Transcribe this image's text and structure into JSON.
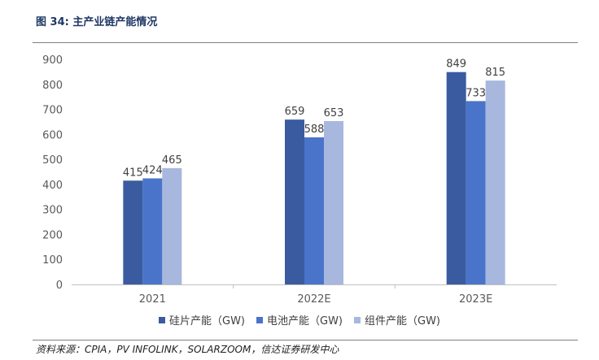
{
  "figure": {
    "title": "图 34:  主产业链产能情况",
    "source": "资料来源：CPIA，PV INFOLINK，SOLARZOOM，信达证券研发中心"
  },
  "chart_data": {
    "type": "bar",
    "title": "",
    "xlabel": "",
    "ylabel": "",
    "categories": [
      "2021",
      "2022E",
      "2023E"
    ],
    "ylim": [
      0,
      900
    ],
    "yticks": [
      0,
      100,
      200,
      300,
      400,
      500,
      600,
      700,
      800,
      900
    ],
    "grid": false,
    "legend_position": "bottom",
    "series": [
      {
        "name": "硅片产能（GW)",
        "color": "#3a5ba0",
        "values": [
          415,
          659,
          849
        ]
      },
      {
        "name": "电池产能（GW)",
        "color": "#4a74c9",
        "values": [
          424,
          588,
          733
        ]
      },
      {
        "name": "组件产能（GW)",
        "color": "#a7b7de",
        "values": [
          465,
          653,
          815
        ]
      }
    ]
  }
}
